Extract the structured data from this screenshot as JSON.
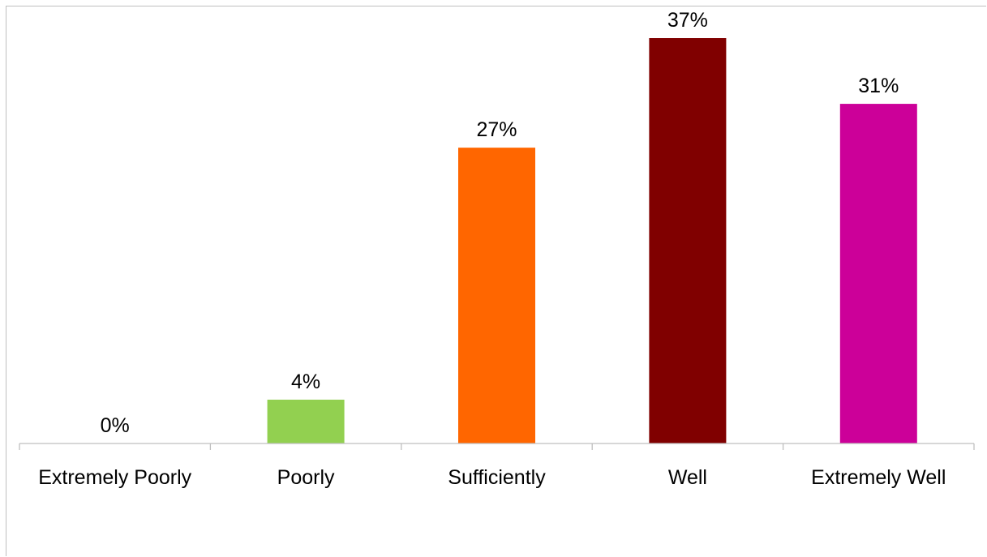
{
  "chart_data": {
    "type": "bar",
    "title": "",
    "xlabel": "",
    "ylabel": "",
    "categories": [
      "Extremely Poorly",
      "Poorly",
      "Sufficiently",
      "Well",
      "Extremely Well"
    ],
    "values": [
      0,
      4,
      27,
      37,
      31
    ],
    "value_labels": [
      "0%",
      "4%",
      "27%",
      "37%",
      "31%"
    ],
    "colors": [
      "#92D050",
      "#92D050",
      "#FF6600",
      "#800000",
      "#CC0099"
    ],
    "axis_color": "#bfbfbf",
    "ylim": [
      0,
      37
    ],
    "grid": false,
    "legend": "none"
  }
}
